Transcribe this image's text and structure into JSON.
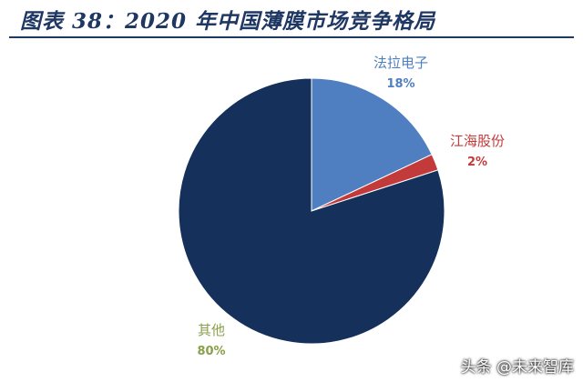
{
  "title": "图表 38：2020 年中国薄膜市场竞争格局",
  "watermark": "头条 @未来智库",
  "chart_data": {
    "type": "pie",
    "title": "",
    "slices": [
      {
        "name": "法拉电子",
        "value": 18,
        "label": "18%",
        "color": "#4f7fc1",
        "label_color": "#4f7fc1"
      },
      {
        "name": "江海股份",
        "value": 2,
        "label": "2%",
        "color": "#c23b3a",
        "label_color": "#c23b3a"
      },
      {
        "name": "其他",
        "value": 80,
        "label": "80%",
        "color": "#16305c",
        "label_color": "#8aa04a"
      }
    ]
  }
}
